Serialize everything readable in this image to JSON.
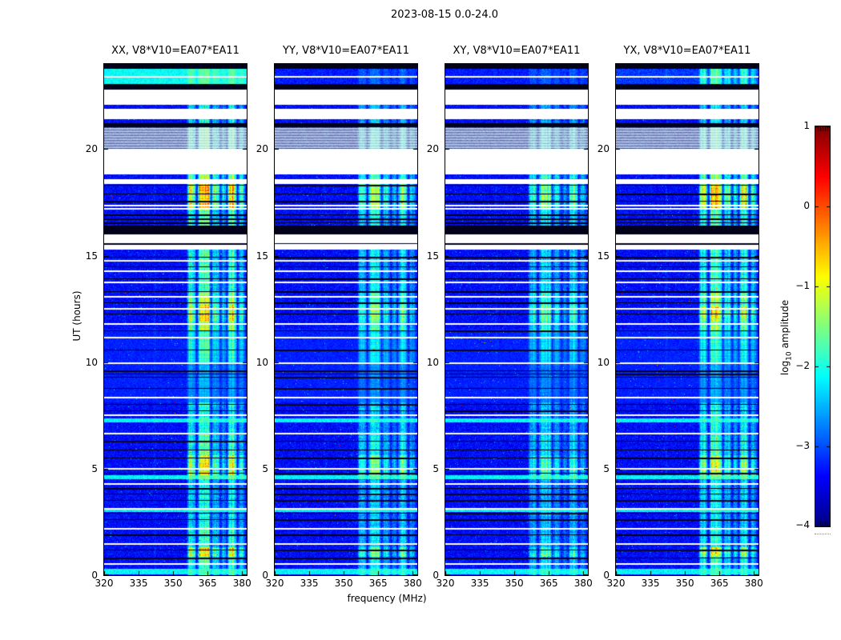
{
  "figure": {
    "title": "2023-08-15 0.0-24.0"
  },
  "panels": [
    {
      "label": "XX, V8*V10=EA07*EA11"
    },
    {
      "label": "YY, V8*V10=EA07*EA11"
    },
    {
      "label": "XY, V8*V10=EA07*EA11"
    },
    {
      "label": "YX, V8*V10=EA07*EA11"
    }
  ],
  "axes": {
    "xlabel": "frequency (MHz)",
    "ylabel": "UT (hours)",
    "xticks": [
      320,
      335,
      350,
      365,
      380
    ],
    "yticks": [
      0,
      5,
      10,
      15,
      20
    ],
    "xlim": [
      320,
      382
    ],
    "ylim": [
      0,
      24
    ]
  },
  "colorbar": {
    "label_prefix": "log",
    "label_sub": "10",
    "label_suffix": " amplitude",
    "ticks": [
      1,
      0,
      -1,
      -2,
      -3,
      -4
    ],
    "vmin": -4,
    "vmax": 1,
    "colormap": "jet"
  },
  "chart_data": {
    "type": "heatmap",
    "subtype": "dynamic-spectrum",
    "title": "2023-08-15 0.0-24.0",
    "xlabel": "frequency (MHz)",
    "ylabel": "UT (hours)",
    "x_range_mhz": [
      320,
      382
    ],
    "t_range_hours": [
      0,
      24
    ],
    "value_scale": "log10 amplitude",
    "vmin": -4,
    "vmax": 1,
    "colormap": "jet",
    "background_level": -3.35,
    "panels": [
      {
        "name": "XX",
        "title": "XX, V8*V10=EA07*EA11",
        "rfi_gain": 1.0,
        "top_style": "cyan",
        "seed": 1234
      },
      {
        "name": "YY",
        "title": "YY, V8*V10=EA07*EA11",
        "rfi_gain": 0.72,
        "top_style": "dim",
        "seed": 2011
      },
      {
        "name": "XY",
        "title": "XY, V8*V10=EA07*EA11",
        "rfi_gain": 0.66,
        "top_style": "dim",
        "seed": 3077
      },
      {
        "name": "YX",
        "title": "YX, V8*V10=EA07*EA11",
        "rfi_gain": 0.92,
        "top_style": "rfi",
        "seed": 4099
      }
    ],
    "rows": [
      {
        "h0": 23.78,
        "h1": 24.0,
        "type": "black"
      },
      {
        "h0": 23.05,
        "h1": 23.78,
        "type": "top"
      },
      {
        "h0": 22.8,
        "h1": 23.05,
        "type": "black"
      },
      {
        "h0": 22.1,
        "h1": 22.8,
        "type": "white"
      },
      {
        "h0": 21.88,
        "h1": 22.1,
        "type": "data"
      },
      {
        "h0": 21.4,
        "h1": 21.88,
        "type": "white"
      },
      {
        "h0": 21.22,
        "h1": 21.4,
        "type": "data"
      },
      {
        "h0": 21.04,
        "h1": 21.22,
        "type": "black"
      },
      {
        "h0": 19.98,
        "h1": 21.04,
        "type": "stripes"
      },
      {
        "h0": 18.8,
        "h1": 19.98,
        "type": "white"
      },
      {
        "h0": 18.6,
        "h1": 18.8,
        "type": "data"
      },
      {
        "h0": 18.38,
        "h1": 18.6,
        "type": "white"
      },
      {
        "h0": 16.0,
        "h1": 16.4,
        "type": "black"
      },
      {
        "h0": 15.28,
        "h1": 16.0,
        "type": "white"
      }
    ],
    "bright_rows": [
      [
        7.18,
        7.35
      ],
      [
        4.5,
        4.68
      ],
      [
        2.95,
        3.08
      ],
      [
        0.04,
        0.3
      ]
    ],
    "white_lines": [
      23.45,
      17.38,
      17.25,
      14.78,
      14.32,
      13.78,
      13.12,
      12.56,
      11.82,
      11.18,
      10.0,
      8.36,
      7.55,
      6.7,
      5.05,
      4.33,
      3.16,
      2.2,
      1.52,
      0.56
    ],
    "black_lines": [
      18.32,
      17.92,
      17.56,
      16.95,
      16.75,
      16.55,
      15.58,
      14.95,
      14.5,
      13.95,
      13.35,
      12.8,
      12.3,
      11.5,
      10.6,
      9.6,
      9.45,
      9.3,
      8.8,
      8.05,
      7.72,
      6.32,
      5.9,
      5.52,
      4.82,
      4.1,
      3.82,
      3.52,
      2.92,
      2.62,
      1.92,
      1.22,
      0.82
    ],
    "rfi_bands_mhz": [
      [
        356.3,
        359.8,
        0.8
      ],
      [
        360.8,
        366.2,
        1.0
      ],
      [
        366.8,
        370.2,
        0.65
      ],
      [
        370.8,
        373.2,
        0.45
      ],
      [
        373.8,
        377.6,
        0.95
      ],
      [
        378.4,
        381.2,
        0.55
      ],
      [
        341.6,
        342.4,
        0.12
      ]
    ],
    "time_modulation": [
      [
        0,
        0.85,
        0.95
      ],
      [
        0.85,
        1.3,
        1.5
      ],
      [
        1.3,
        2.3,
        0.9
      ],
      [
        2.3,
        4.5,
        0.8
      ],
      [
        4.5,
        5.65,
        1.45
      ],
      [
        5.65,
        6.6,
        1.0
      ],
      [
        6.6,
        8.1,
        0.85
      ],
      [
        8.1,
        9.9,
        0.45
      ],
      [
        9.9,
        11.5,
        0.85
      ],
      [
        11.5,
        13.25,
        1.25
      ],
      [
        11.95,
        12.7,
        1.55
      ],
      [
        13.25,
        15.3,
        0.95
      ],
      [
        15.3,
        16.4,
        0.4
      ],
      [
        16.4,
        17.2,
        1.05
      ],
      [
        17.2,
        18.45,
        1.65
      ],
      [
        18.45,
        19.0,
        1.25
      ],
      [
        19.9,
        21.1,
        1.05
      ],
      [
        21.1,
        22.9,
        0.75
      ],
      [
        22.9,
        24,
        0.9
      ]
    ]
  }
}
